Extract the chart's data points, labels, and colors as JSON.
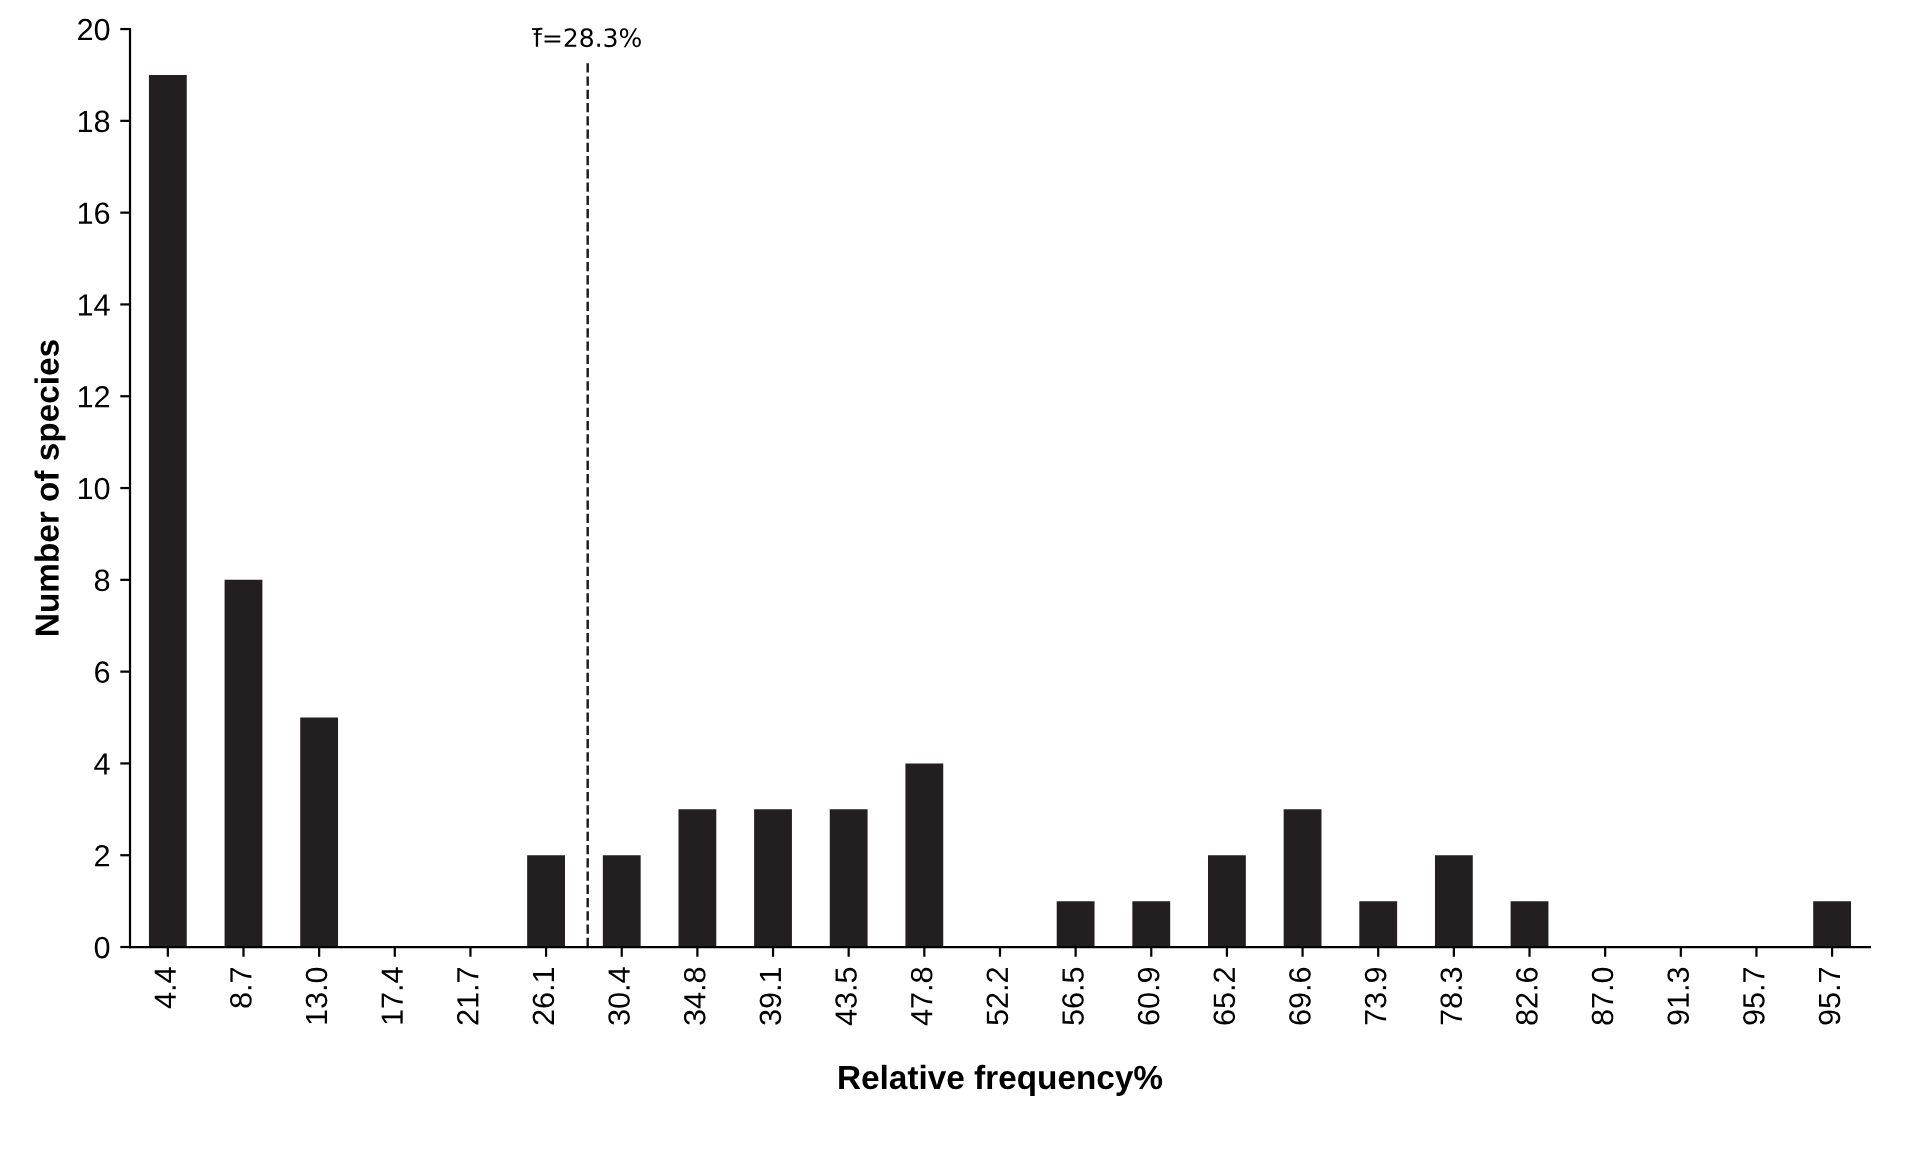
{
  "chart_data": {
    "type": "bar",
    "xlabel": "Relative frequency%",
    "ylabel": "Number of species",
    "categories": [
      "4.4",
      "8.7",
      "13.0",
      "17.4",
      "21.7",
      "26.1",
      "30.4",
      "34.8",
      "39.1",
      "43.5",
      "47.8",
      "52.2",
      "56.5",
      "60.9",
      "65.2",
      "69.6",
      "73.9",
      "78.3",
      "82.6",
      "87.0",
      "91.3",
      "95.7",
      "95.7"
    ],
    "values": [
      19,
      8,
      5,
      0,
      0,
      2,
      2,
      3,
      3,
      3,
      4,
      0,
      1,
      1,
      2,
      3,
      1,
      2,
      1,
      0,
      0,
      0,
      1
    ],
    "color": "#231f20",
    "ylim": [
      0,
      20
    ],
    "yticks": [
      0,
      2,
      4,
      6,
      8,
      10,
      12,
      14,
      16,
      18,
      20
    ],
    "annotations": [
      "f̄=28.3%"
    ],
    "grid": false,
    "legend": false
  }
}
